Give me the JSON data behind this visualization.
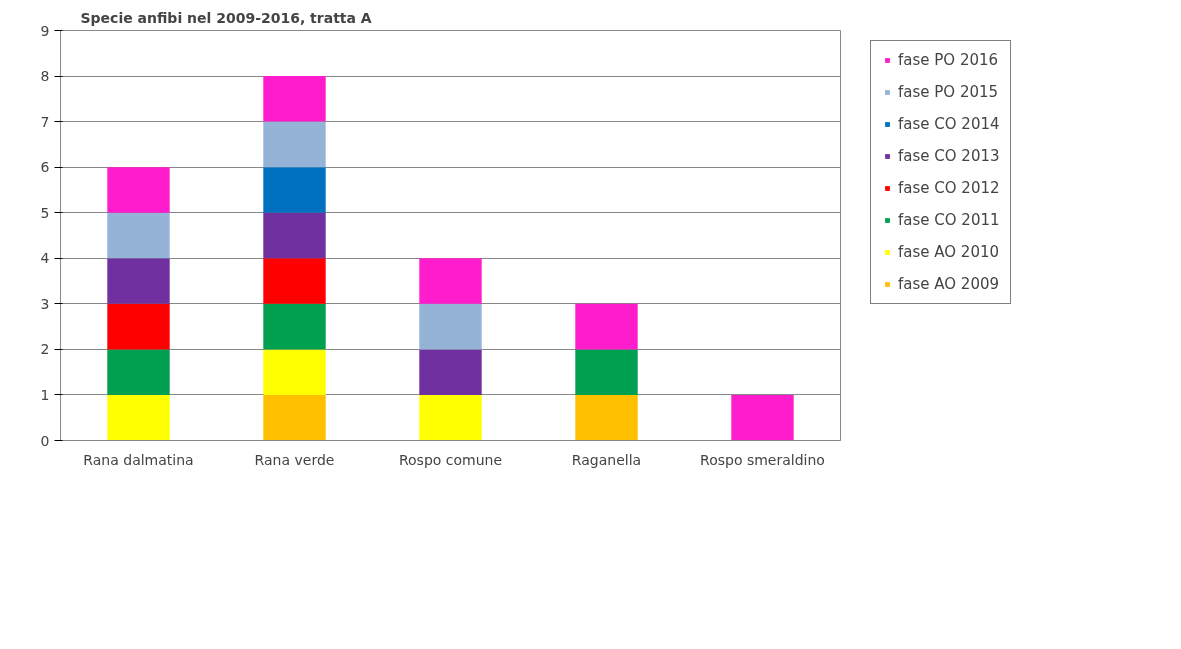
{
  "chart_data": {
    "type": "bar",
    "title": "Specie anfibi nel  2009-2016, tratta A",
    "categories": [
      "Rana dalmatina",
      "Rana verde",
      "Rospo comune",
      "Raganella",
      "Rospo smeraldino"
    ],
    "stacked": true,
    "ylim": [
      0,
      9
    ],
    "yticks": [
      0,
      1,
      2,
      3,
      4,
      5,
      6,
      7,
      8,
      9
    ],
    "grid": "y",
    "legend": "right",
    "series": [
      {
        "name": "fase AO 2009",
        "color": "#ffc000",
        "values": [
          0,
          1,
          0,
          1,
          0
        ]
      },
      {
        "name": "fase AO 2010",
        "color": "#ffff00",
        "values": [
          1,
          1,
          1,
          0,
          0
        ]
      },
      {
        "name": "fase CO 2011",
        "color": "#00a050",
        "values": [
          1,
          1,
          0,
          1,
          0
        ]
      },
      {
        "name": "fase CO 2012",
        "color": "#ff0000",
        "values": [
          1,
          1,
          0,
          0,
          0
        ]
      },
      {
        "name": "fase CO 2013",
        "color": "#7030a0",
        "values": [
          1,
          1,
          1,
          0,
          0
        ]
      },
      {
        "name": "fase CO 2014",
        "color": "#0070c0",
        "values": [
          0,
          1,
          0,
          0,
          0
        ]
      },
      {
        "name": "fase PO 2015",
        "color": "#95b3d7",
        "values": [
          1,
          1,
          1,
          0,
          0
        ]
      },
      {
        "name": "fase PO 2016",
        "color": "#ff1ccc",
        "values": [
          1,
          1,
          1,
          1,
          1
        ]
      }
    ]
  }
}
